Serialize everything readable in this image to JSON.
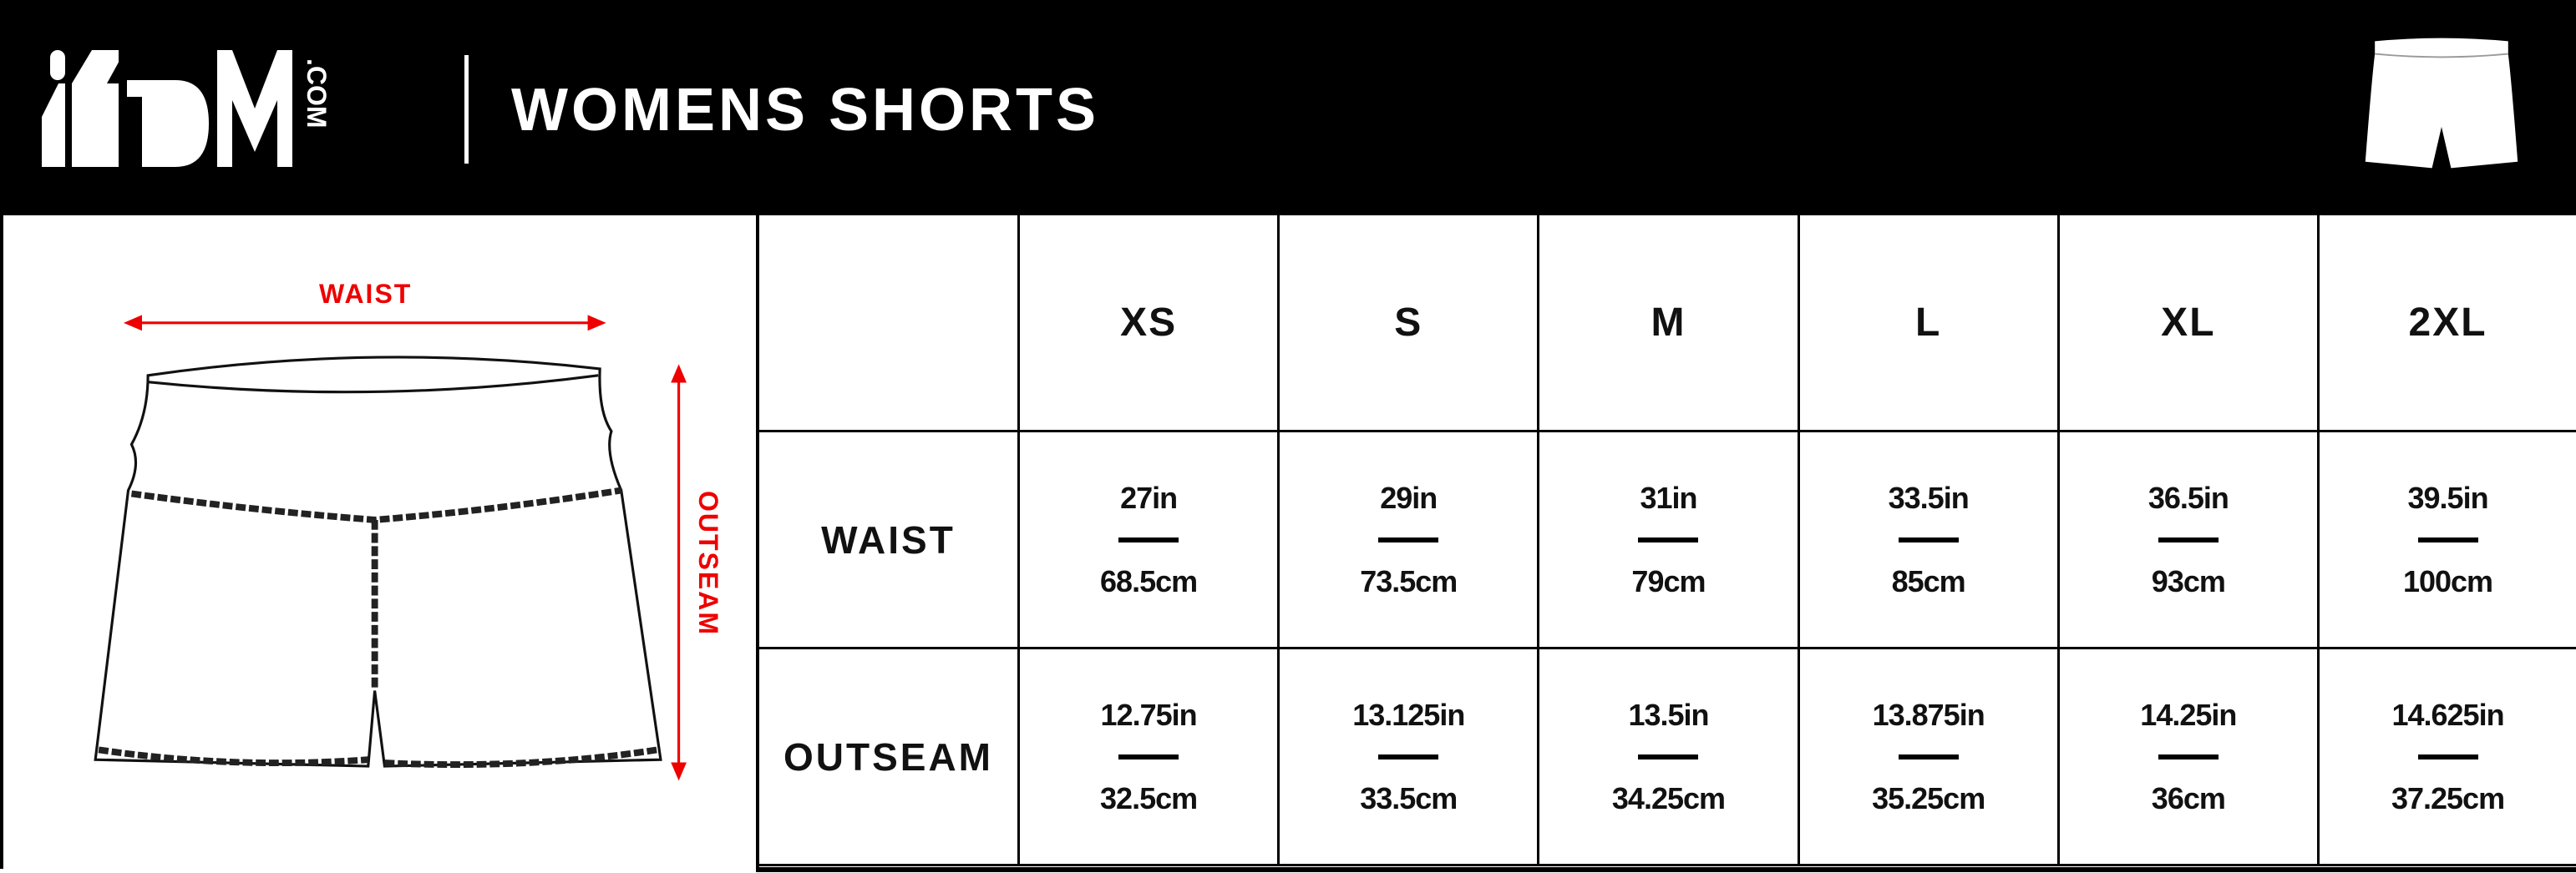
{
  "header": {
    "logo_text": "iEDM.com",
    "title": "WOMENS SHORTS"
  },
  "diagram": {
    "waist_label": "WAIST",
    "outseam_label": "OUTSEAM",
    "accent_color": "#e00000"
  },
  "table": {
    "sizes": [
      "XS",
      "S",
      "M",
      "L",
      "XL",
      "2XL"
    ],
    "rows": [
      {
        "label": "WAIST",
        "values": [
          {
            "in": "27in",
            "cm": "68.5cm"
          },
          {
            "in": "29in",
            "cm": "73.5cm"
          },
          {
            "in": "31in",
            "cm": "79cm"
          },
          {
            "in": "33.5in",
            "cm": "85cm"
          },
          {
            "in": "36.5in",
            "cm": "93cm"
          },
          {
            "in": "39.5in",
            "cm": "100cm"
          }
        ]
      },
      {
        "label": "OUTSEAM",
        "values": [
          {
            "in": "12.75in",
            "cm": "32.5cm"
          },
          {
            "in": "13.125in",
            "cm": "33.5cm"
          },
          {
            "in": "13.5in",
            "cm": "34.25cm"
          },
          {
            "in": "13.875in",
            "cm": "35.25cm"
          },
          {
            "in": "14.25in",
            "cm": "36cm"
          },
          {
            "in": "14.625in",
            "cm": "37.25cm"
          }
        ]
      }
    ]
  }
}
